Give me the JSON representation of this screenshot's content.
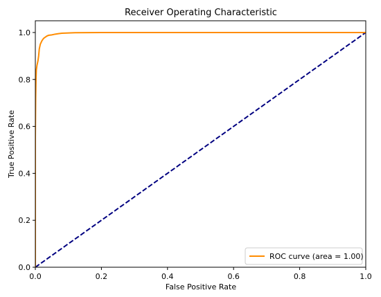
{
  "chart_data": {
    "type": "line",
    "title": "Receiver Operating Characteristic",
    "xlabel": "False Positive Rate",
    "ylabel": "True Positive Rate",
    "xlim": [
      0.0,
      1.0
    ],
    "ylim": [
      0.0,
      1.05
    ],
    "xticks": [
      "0.0",
      "0.2",
      "0.4",
      "0.6",
      "0.8",
      "1.0"
    ],
    "yticks": [
      "0.0",
      "0.2",
      "0.4",
      "0.6",
      "0.8",
      "1.0"
    ],
    "grid": false,
    "legend_position": "lower-right",
    "series": [
      {
        "name": "ROC curve (area = 1.00)",
        "color": "#ff8c00",
        "style": "solid",
        "x": [
          0.0,
          0.0,
          0.001,
          0.002,
          0.003,
          0.005,
          0.008,
          0.01,
          0.012,
          0.015,
          0.02,
          0.025,
          0.03,
          0.035,
          0.04,
          0.05,
          0.06,
          0.07,
          0.08,
          0.1,
          0.12,
          0.2,
          0.5,
          1.0
        ],
        "y": [
          0.0,
          0.55,
          0.72,
          0.8,
          0.84,
          0.86,
          0.88,
          0.9,
          0.93,
          0.95,
          0.965,
          0.975,
          0.98,
          0.985,
          0.988,
          0.99,
          0.993,
          0.995,
          0.997,
          0.998,
          0.999,
          1.0,
          1.0,
          1.0
        ]
      },
      {
        "color": "#000080",
        "style": "dashed",
        "x": [
          0.0,
          1.0
        ],
        "y": [
          0.0,
          1.0
        ]
      }
    ]
  }
}
